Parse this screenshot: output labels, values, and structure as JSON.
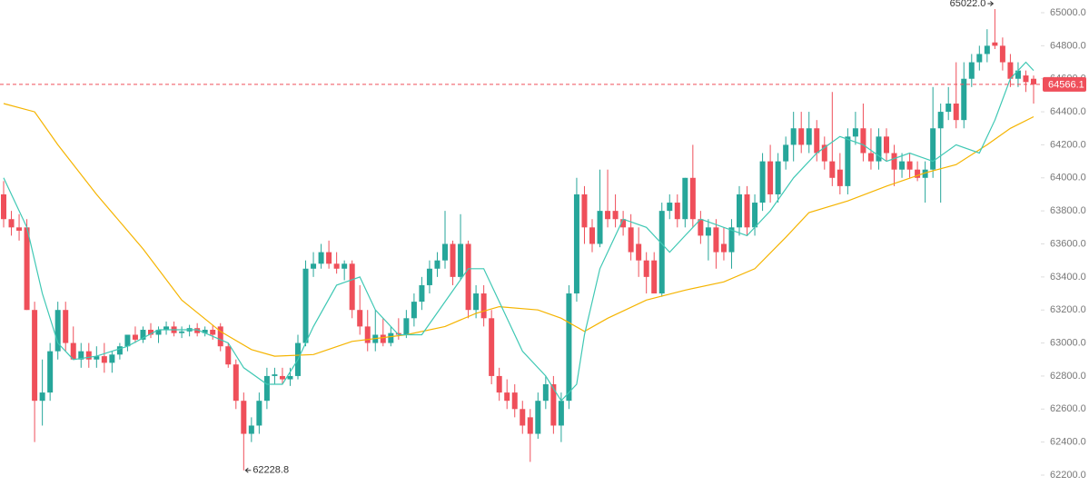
{
  "chart_data": {
    "type": "candlestick",
    "up_color": "#26a69a",
    "down_color": "#ef4f5a",
    "ylim": [
      62200,
      65000
    ],
    "yticks": [
      {
        "value": 62200,
        "label": "62200.0"
      },
      {
        "value": 62400,
        "label": "62400.0"
      },
      {
        "value": 62600,
        "label": "62600.0"
      },
      {
        "value": 62800,
        "label": "62800.0"
      },
      {
        "value": 63000,
        "label": "63000.0"
      },
      {
        "value": 63200,
        "label": "63200.0"
      },
      {
        "value": 63400,
        "label": "63400.0"
      },
      {
        "value": 63600,
        "label": "63600.0"
      },
      {
        "value": 63800,
        "label": "63800.0"
      },
      {
        "value": 64000,
        "label": "64000.0"
      },
      {
        "value": 64200,
        "label": "64200.0"
      },
      {
        "value": 64400,
        "label": "64400.0"
      },
      {
        "value": 64600,
        "label": "64600.0"
      },
      {
        "value": 64800,
        "label": "64800.0"
      },
      {
        "value": 65000,
        "label": "65000.0"
      }
    ],
    "last_price": {
      "value": 64566.1,
      "label": "64566.1",
      "color": "#ef4f5a"
    },
    "annotations": [
      {
        "value": 65022,
        "label": "65022.0",
        "at": "high"
      },
      {
        "value": 62228.8,
        "label": "62228.8",
        "at": "low"
      }
    ],
    "ohlc": [
      [
        63900,
        63980,
        63700,
        63750
      ],
      [
        63750,
        63800,
        63650,
        63700
      ],
      [
        63700,
        63780,
        63620,
        63680
      ],
      [
        63700,
        63750,
        63200,
        63200
      ],
      [
        63200,
        63250,
        62400,
        62650
      ],
      [
        62650,
        62900,
        62500,
        62700
      ],
      [
        62700,
        63000,
        62650,
        62950
      ],
      [
        62950,
        63250,
        62900,
        63200
      ],
      [
        63200,
        63250,
        62950,
        63000
      ],
      [
        63000,
        63100,
        62900,
        62900
      ],
      [
        62900,
        63000,
        62850,
        62950
      ],
      [
        62950,
        63000,
        62850,
        62900
      ],
      [
        62900,
        62980,
        62850,
        62920
      ],
      [
        62920,
        63000,
        62820,
        62880
      ],
      [
        62880,
        62950,
        62820,
        62930
      ],
      [
        62930,
        63000,
        62900,
        62980
      ],
      [
        62980,
        63050,
        62950,
        63050
      ],
      [
        63050,
        63100,
        63000,
        63020
      ],
      [
        63020,
        63100,
        63000,
        63080
      ],
      [
        63080,
        63120,
        63030,
        63050
      ],
      [
        63050,
        63100,
        63000,
        63080
      ],
      [
        63080,
        63130,
        63050,
        63100
      ],
      [
        63100,
        63130,
        63040,
        63060
      ],
      [
        63060,
        63100,
        63030,
        63070
      ],
      [
        63070,
        63110,
        63040,
        63090
      ],
      [
        63090,
        63120,
        63040,
        63060
      ],
      [
        63060,
        63100,
        63040,
        63080
      ],
      [
        63080,
        63110,
        63020,
        63050
      ],
      [
        63100,
        63120,
        62950,
        62980
      ],
      [
        62980,
        63000,
        62850,
        62870
      ],
      [
        62870,
        62900,
        62600,
        62650
      ],
      [
        62650,
        62700,
        62228.8,
        62450
      ],
      [
        62450,
        62550,
        62400,
        62500
      ],
      [
        62500,
        62700,
        62450,
        62650
      ],
      [
        62650,
        62850,
        62600,
        62800
      ],
      [
        62800,
        62850,
        62750,
        62810
      ],
      [
        62800,
        62850,
        62750,
        62780
      ],
      [
        62780,
        62850,
        62740,
        62800
      ],
      [
        62800,
        63050,
        62780,
        63000
      ],
      [
        63000,
        63500,
        62980,
        63450
      ],
      [
        63450,
        63550,
        63400,
        63480
      ],
      [
        63480,
        63600,
        63450,
        63550
      ],
      [
        63550,
        63620,
        63450,
        63480
      ],
      [
        63480,
        63550,
        63420,
        63450
      ],
      [
        63450,
        63500,
        63380,
        63480
      ],
      [
        63480,
        63500,
        63150,
        63200
      ],
      [
        63200,
        63350,
        63050,
        63100
      ],
      [
        63100,
        63200,
        62950,
        63000
      ],
      [
        63000,
        63200,
        62950,
        63050
      ],
      [
        63050,
        63150,
        62980,
        63000
      ],
      [
        63000,
        63100,
        62980,
        63060
      ],
      [
        63060,
        63150,
        63020,
        63050
      ],
      [
        63050,
        63200,
        63030,
        63150
      ],
      [
        63150,
        63300,
        63100,
        63250
      ],
      [
        63250,
        63400,
        63200,
        63350
      ],
      [
        63350,
        63500,
        63300,
        63450
      ],
      [
        63450,
        63550,
        63400,
        63500
      ],
      [
        63500,
        63800,
        63450,
        63600
      ],
      [
        63600,
        63620,
        63350,
        63400
      ],
      [
        63400,
        63780,
        63380,
        63600
      ],
      [
        63600,
        63620,
        63150,
        63200
      ],
      [
        63200,
        63350,
        63150,
        63300
      ],
      [
        63300,
        63350,
        63100,
        63150
      ],
      [
        63150,
        63200,
        62750,
        62800
      ],
      [
        62800,
        62850,
        62650,
        62700
      ],
      [
        62700,
        62780,
        62600,
        62650
      ],
      [
        62700,
        62750,
        62550,
        62600
      ],
      [
        62600,
        62650,
        62450,
        62500
      ],
      [
        62550,
        62600,
        62280,
        62450
      ],
      [
        62450,
        62700,
        62420,
        62650
      ],
      [
        62650,
        62800,
        62600,
        62750
      ],
      [
        62750,
        62800,
        62450,
        62500
      ],
      [
        62500,
        62700,
        62400,
        62650
      ],
      [
        62650,
        63350,
        62600,
        63300
      ],
      [
        63300,
        64000,
        63250,
        63900
      ],
      [
        63900,
        63950,
        63600,
        63700
      ],
      [
        63700,
        63750,
        63550,
        63600
      ],
      [
        63600,
        64050,
        63580,
        63800
      ],
      [
        63800,
        64050,
        63700,
        63750
      ],
      [
        63800,
        63900,
        63700,
        63750
      ],
      [
        63750,
        63800,
        63650,
        63700
      ],
      [
        63700,
        63780,
        63500,
        63550
      ],
      [
        63600,
        63700,
        63400,
        63500
      ],
      [
        63500,
        63550,
        63300,
        63400
      ],
      [
        63500,
        63550,
        63300,
        63300
      ],
      [
        63300,
        63850,
        63280,
        63800
      ],
      [
        63800,
        63900,
        63750,
        63850
      ],
      [
        63850,
        63900,
        63700,
        63750
      ],
      [
        63750,
        64000,
        63700,
        64000
      ],
      [
        64000,
        64200,
        63700,
        63750
      ],
      [
        63750,
        63800,
        63600,
        63650
      ],
      [
        63650,
        63750,
        63500,
        63700
      ],
      [
        63700,
        63750,
        63450,
        63550
      ],
      [
        63600,
        63700,
        63500,
        63550
      ],
      [
        63550,
        63750,
        63450,
        63700
      ],
      [
        63700,
        63950,
        63650,
        63900
      ],
      [
        63900,
        63950,
        63650,
        63700
      ],
      [
        63700,
        63900,
        63650,
        63850
      ],
      [
        63850,
        64150,
        63800,
        64100
      ],
      [
        64100,
        64200,
        63850,
        63900
      ],
      [
        63900,
        64150,
        63850,
        64100
      ],
      [
        64100,
        64250,
        64050,
        64200
      ],
      [
        64200,
        64400,
        64100,
        64300
      ],
      [
        64300,
        64400,
        64150,
        64200
      ],
      [
        64200,
        64400,
        64150,
        64300
      ],
      [
        64300,
        64350,
        64100,
        64150
      ],
      [
        64200,
        64250,
        64050,
        64100
      ],
      [
        64100,
        64520,
        63950,
        64000
      ],
      [
        64050,
        64150,
        63900,
        63950
      ],
      [
        63950,
        64300,
        63900,
        64250
      ],
      [
        64250,
        64400,
        64200,
        64300
      ],
      [
        64300,
        64450,
        64100,
        64150
      ],
      [
        64150,
        64300,
        64050,
        64100
      ],
      [
        64100,
        64300,
        64050,
        64250
      ],
      [
        64250,
        64300,
        64100,
        64150
      ],
      [
        64150,
        64200,
        63950,
        64050
      ],
      [
        64050,
        64150,
        64000,
        64100
      ],
      [
        64100,
        64150,
        64000,
        64050
      ],
      [
        64050,
        64100,
        63980,
        64000
      ],
      [
        64000,
        64100,
        63850,
        64050
      ],
      [
        64050,
        64550,
        64000,
        64300
      ],
      [
        64300,
        64450,
        63850,
        64400
      ],
      [
        64400,
        64550,
        64350,
        64450
      ],
      [
        64450,
        64700,
        64300,
        64350
      ],
      [
        64350,
        64700,
        64300,
        64600
      ],
      [
        64600,
        64750,
        64550,
        64700
      ],
      [
        64700,
        64800,
        64650,
        64750
      ],
      [
        64750,
        64900,
        64700,
        64800
      ],
      [
        64820,
        65022,
        64780,
        64800
      ],
      [
        64800,
        64850,
        64650,
        64700
      ],
      [
        64700,
        64750,
        64550,
        64600
      ],
      [
        64600,
        64700,
        64550,
        64650
      ],
      [
        64620,
        64650,
        64520,
        64580
      ],
      [
        64600,
        64620,
        64450,
        64566.1
      ]
    ],
    "lines": [
      {
        "color": "#f5b400",
        "x": [
          0,
          4,
          7,
          12,
          18,
          23,
          28,
          32,
          35,
          40,
          45,
          52,
          57,
          61,
          64,
          69,
          72,
          75,
          78,
          83,
          88,
          93,
          97,
          101,
          104,
          109,
          114,
          119,
          123,
          127,
          130,
          133
        ],
        "values": [
          64450,
          64400,
          64200,
          63900,
          63570,
          63260,
          63070,
          62960,
          62920,
          62930,
          63010,
          63050,
          63100,
          63180,
          63220,
          63200,
          63150,
          63070,
          63150,
          63260,
          63320,
          63370,
          63450,
          63640,
          63790,
          63860,
          63950,
          64030,
          64080,
          64200,
          64300,
          64370
        ]
      },
      {
        "color": "#3fc8b4",
        "x": [
          0,
          3,
          5,
          7,
          9,
          12,
          16,
          20,
          25,
          29,
          31,
          34,
          36,
          38,
          40,
          43,
          46,
          48,
          51,
          54,
          57,
          60,
          62,
          64,
          67,
          70,
          72,
          74,
          75,
          77,
          80,
          83,
          86,
          88,
          90,
          93,
          96,
          99,
          102,
          105,
          108,
          111,
          114,
          117,
          120,
          123,
          126,
          128,
          130,
          132,
          133
        ],
        "values": [
          64000,
          63700,
          63300,
          63000,
          62900,
          62920,
          62980,
          63080,
          63080,
          63000,
          62850,
          62750,
          62750,
          62900,
          63100,
          63350,
          63400,
          63200,
          63050,
          63050,
          63250,
          63450,
          63450,
          63250,
          62950,
          62800,
          62650,
          62750,
          63050,
          63450,
          63750,
          63700,
          63550,
          63650,
          63750,
          63700,
          63650,
          63800,
          64000,
          64150,
          64250,
          64200,
          64100,
          64150,
          64100,
          64200,
          64150,
          64350,
          64600,
          64700,
          64650
        ]
      }
    ]
  }
}
